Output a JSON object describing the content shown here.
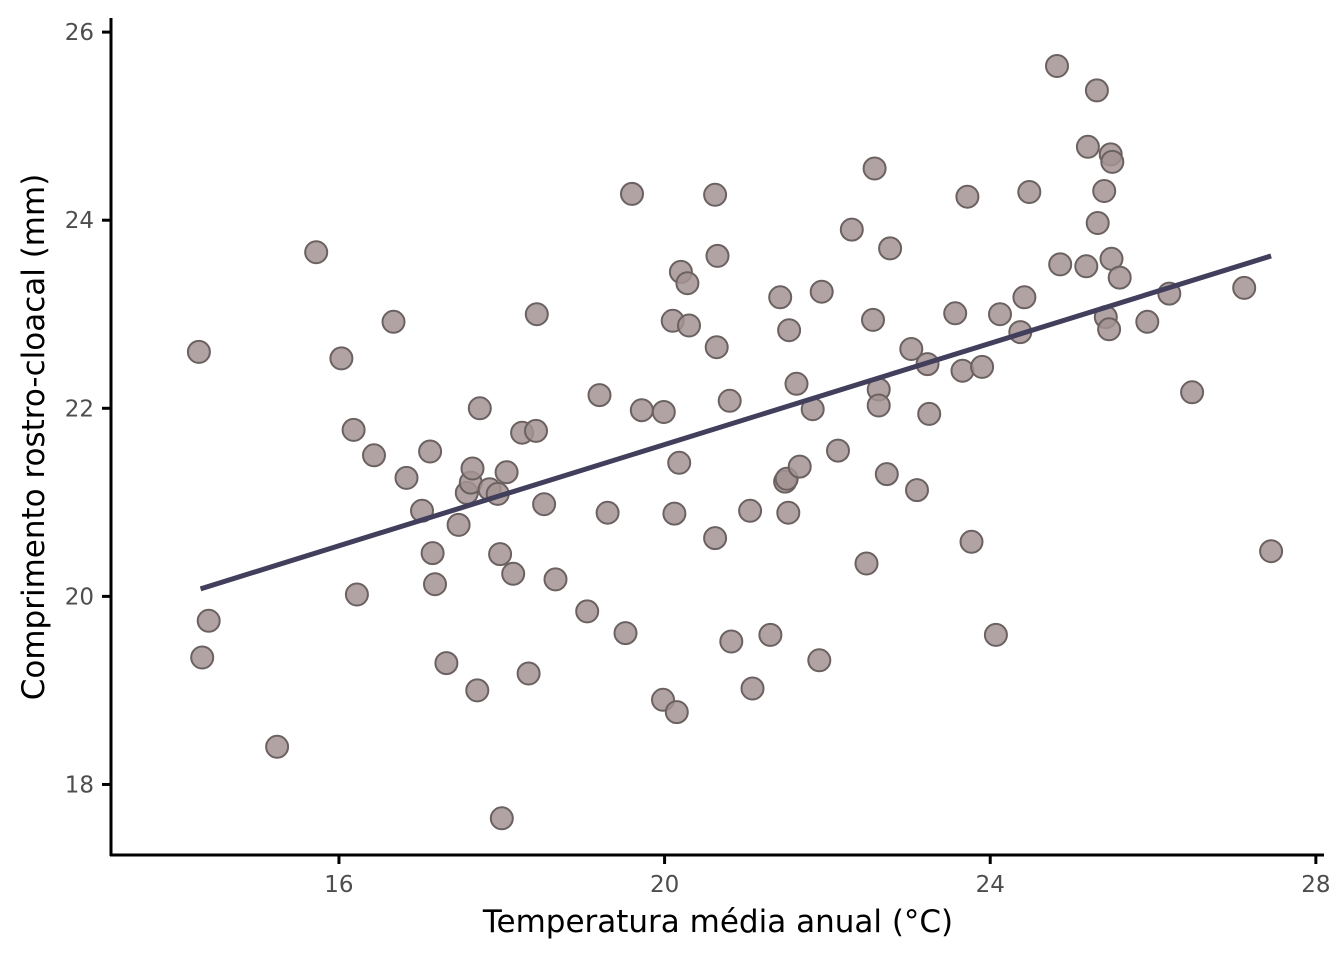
{
  "chart_data": {
    "type": "scatter",
    "title": "",
    "xlabel": "Temperatura média anual (°C)",
    "ylabel": "Comprimento rostro-cloacal (mm)",
    "xlim": [
      13.2,
      28.1
    ],
    "ylim": [
      17.25,
      26.15
    ],
    "x_ticks": [
      16,
      20,
      24,
      28
    ],
    "y_ticks": [
      18,
      20,
      22,
      24,
      26
    ],
    "colors": {
      "point_fill": "#a39393",
      "point_stroke": "#6b6161",
      "fit_line": "#423f5c",
      "axis": "#000000"
    },
    "fit_line": {
      "x": [
        14.3,
        27.45
      ],
      "y": [
        20.08,
        23.62
      ]
    },
    "points": [
      [
        14.28,
        22.6
      ],
      [
        14.32,
        19.35
      ],
      [
        14.4,
        19.74
      ],
      [
        15.24,
        18.4
      ],
      [
        15.72,
        23.66
      ],
      [
        16.03,
        22.53
      ],
      [
        16.18,
        21.77
      ],
      [
        16.22,
        20.02
      ],
      [
        16.43,
        21.5
      ],
      [
        16.67,
        22.92
      ],
      [
        16.83,
        21.26
      ],
      [
        17.02,
        20.91
      ],
      [
        17.12,
        21.54
      ],
      [
        17.15,
        20.46
      ],
      [
        17.18,
        20.13
      ],
      [
        17.32,
        19.29
      ],
      [
        17.47,
        20.76
      ],
      [
        17.57,
        21.1
      ],
      [
        17.62,
        21.21
      ],
      [
        17.64,
        21.36
      ],
      [
        17.7,
        19.0
      ],
      [
        17.73,
        22.0
      ],
      [
        17.85,
        21.14
      ],
      [
        17.95,
        21.09
      ],
      [
        17.98,
        20.45
      ],
      [
        18.0,
        17.64
      ],
      [
        18.06,
        21.32
      ],
      [
        18.14,
        20.24
      ],
      [
        18.25,
        21.74
      ],
      [
        18.33,
        19.18
      ],
      [
        18.42,
        21.76
      ],
      [
        18.43,
        23.0
      ],
      [
        18.52,
        20.98
      ],
      [
        18.66,
        20.18
      ],
      [
        19.05,
        19.84
      ],
      [
        19.2,
        22.14
      ],
      [
        19.3,
        20.89
      ],
      [
        19.52,
        19.61
      ],
      [
        19.6,
        24.28
      ],
      [
        19.72,
        21.98
      ],
      [
        19.98,
        18.9
      ],
      [
        19.99,
        21.96
      ],
      [
        20.1,
        22.93
      ],
      [
        20.12,
        20.88
      ],
      [
        20.15,
        18.77
      ],
      [
        20.18,
        21.42
      ],
      [
        20.2,
        23.45
      ],
      [
        20.28,
        23.33
      ],
      [
        20.3,
        22.88
      ],
      [
        20.62,
        20.62
      ],
      [
        20.62,
        24.27
      ],
      [
        20.64,
        22.65
      ],
      [
        20.65,
        23.62
      ],
      [
        20.8,
        22.08
      ],
      [
        20.82,
        19.52
      ],
      [
        21.05,
        20.91
      ],
      [
        21.08,
        19.02
      ],
      [
        21.3,
        19.59
      ],
      [
        21.42,
        23.18
      ],
      [
        21.48,
        21.22
      ],
      [
        21.5,
        21.25
      ],
      [
        21.52,
        20.89
      ],
      [
        21.53,
        22.83
      ],
      [
        21.62,
        22.26
      ],
      [
        21.66,
        21.38
      ],
      [
        21.82,
        21.99
      ],
      [
        21.9,
        19.32
      ],
      [
        21.93,
        23.24
      ],
      [
        22.13,
        21.55
      ],
      [
        22.3,
        23.9
      ],
      [
        22.48,
        20.35
      ],
      [
        22.56,
        22.94
      ],
      [
        22.58,
        24.55
      ],
      [
        22.63,
        22.2
      ],
      [
        22.63,
        22.03
      ],
      [
        22.73,
        21.3
      ],
      [
        22.77,
        23.7
      ],
      [
        23.03,
        22.63
      ],
      [
        23.1,
        21.13
      ],
      [
        23.23,
        22.47
      ],
      [
        23.25,
        21.94
      ],
      [
        23.57,
        23.01
      ],
      [
        23.66,
        22.4
      ],
      [
        23.72,
        24.25
      ],
      [
        23.77,
        20.58
      ],
      [
        23.9,
        22.44
      ],
      [
        24.07,
        19.59
      ],
      [
        24.12,
        23.0
      ],
      [
        24.37,
        22.81
      ],
      [
        24.42,
        23.18
      ],
      [
        24.48,
        24.3
      ],
      [
        24.82,
        25.64
      ],
      [
        24.86,
        23.53
      ],
      [
        25.18,
        23.51
      ],
      [
        25.2,
        24.78
      ],
      [
        25.31,
        25.38
      ],
      [
        25.32,
        23.97
      ],
      [
        25.4,
        24.31
      ],
      [
        25.42,
        22.97
      ],
      [
        25.46,
        22.84
      ],
      [
        25.48,
        24.7
      ],
      [
        25.5,
        24.62
      ],
      [
        25.49,
        23.59
      ],
      [
        25.59,
        23.39
      ],
      [
        25.93,
        22.92
      ],
      [
        26.2,
        23.22
      ],
      [
        26.48,
        22.17
      ],
      [
        27.12,
        23.28
      ],
      [
        27.45,
        20.48
      ]
    ]
  }
}
